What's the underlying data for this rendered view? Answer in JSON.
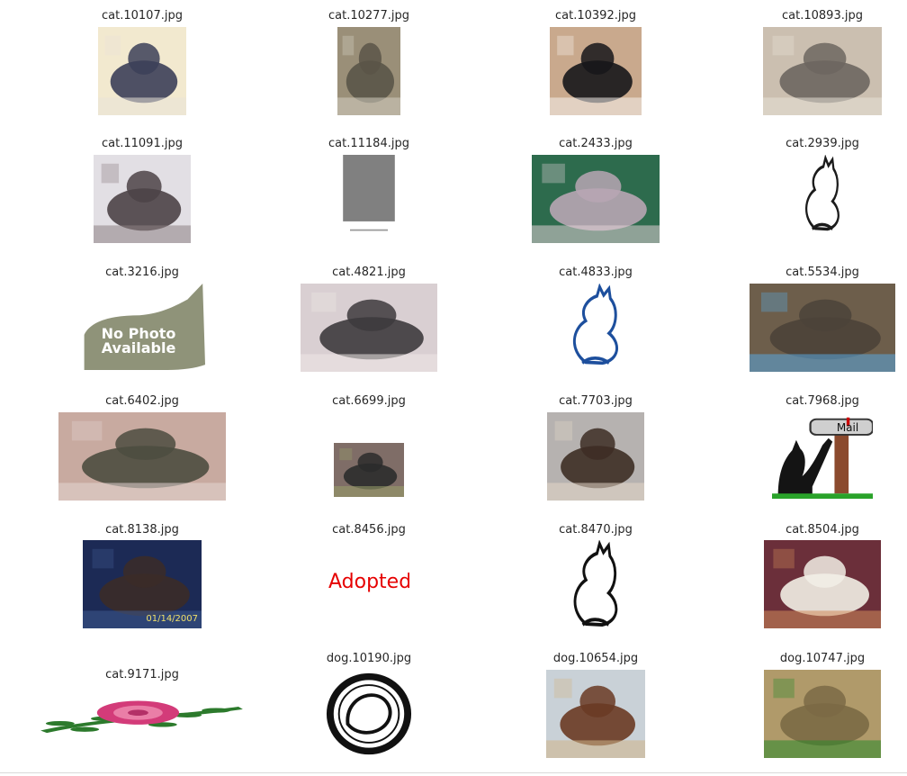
{
  "grid": {
    "items": [
      {
        "filename": "cat.10107.jpg",
        "content": "photo",
        "colors": [
          "#f2e9cf",
          "#3c3f58",
          "#eae3d8"
        ]
      },
      {
        "filename": "cat.10277.jpg",
        "content": "photo",
        "colors": [
          "#9a8f78",
          "#5a5548",
          "#d5d0c3"
        ]
      },
      {
        "filename": "cat.10392.jpg",
        "content": "photo",
        "colors": [
          "#c9a98d",
          "#16161a",
          "#f5f2ee"
        ]
      },
      {
        "filename": "cat.10893.jpg",
        "content": "photo",
        "colors": [
          "#cbbfb0",
          "#6d6660",
          "#e8e2d7"
        ]
      },
      {
        "filename": "cat.11091.jpg",
        "content": "photo",
        "colors": [
          "#e2dfe4",
          "#4c4346",
          "#8c7f84"
        ]
      },
      {
        "filename": "cat.11184.jpg",
        "content": "gray-panel",
        "colors": [
          "#808080",
          "#ffffff",
          "#9a9a9a"
        ]
      },
      {
        "filename": "cat.2433.jpg",
        "content": "photo",
        "colors": [
          "#2d6b4d",
          "#b8a6b4",
          "#e0d0d6"
        ]
      },
      {
        "filename": "cat.2939.jpg",
        "content": "line-art",
        "colors": [
          "#ffffff",
          "#1b1b1b",
          "#ffffff"
        ]
      },
      {
        "filename": "cat.3216.jpg",
        "content": "no-photo",
        "text": "No Photo Available",
        "colors": [
          "#8f9379",
          "#ffffff",
          "#7c7f68"
        ]
      },
      {
        "filename": "cat.4821.jpg",
        "content": "photo",
        "colors": [
          "#d9cfd2",
          "#3d3a3d",
          "#efe7e6"
        ]
      },
      {
        "filename": "cat.4833.jpg",
        "content": "line-art",
        "colors": [
          "#ffffff",
          "#1d4f9d",
          "#ffffff"
        ]
      },
      {
        "filename": "cat.5534.jpg",
        "content": "photo",
        "colors": [
          "#6d5e4b",
          "#4b4339",
          "#5aa8e0"
        ]
      },
      {
        "filename": "cat.6402.jpg",
        "content": "photo",
        "colors": [
          "#c8aaa0",
          "#4c4c3f",
          "#e3d5d1"
        ]
      },
      {
        "filename": "cat.6699.jpg",
        "content": "photo",
        "colors": [
          "#7f6d67",
          "#2c2c2c",
          "#9ba06a"
        ]
      },
      {
        "filename": "cat.7703.jpg",
        "content": "photo",
        "colors": [
          "#b6b2b0",
          "#3d2d25",
          "#e3d7c8"
        ]
      },
      {
        "filename": "cat.7968.jpg",
        "content": "mailbox",
        "text": "Mail",
        "colors": [
          "#ffffff",
          "#141414",
          "#8b4a2e"
        ]
      },
      {
        "filename": "cat.8138.jpg",
        "content": "photo",
        "colors": [
          "#1c2a55",
          "#3b2b28",
          "#3e5a8f"
        ],
        "text": "01/14/2007"
      },
      {
        "filename": "cat.8456.jpg",
        "content": "adopted",
        "text": "Adopted",
        "colors": [
          "#ffffff",
          "#e60000",
          "#ffffff"
        ]
      },
      {
        "filename": "cat.8470.jpg",
        "content": "line-art",
        "colors": [
          "#ffffff",
          "#111111",
          "#ffffff"
        ]
      },
      {
        "filename": "cat.8504.jpg",
        "content": "photo",
        "colors": [
          "#6b2f3a",
          "#f2efe6",
          "#d08b5a"
        ]
      },
      {
        "filename": "cat.9171.jpg",
        "content": "rose",
        "colors": [
          "#ffffff",
          "#d33b79",
          "#2c7a2c"
        ]
      },
      {
        "filename": "dog.10190.jpg",
        "content": "logo",
        "colors": [
          "#ffffff",
          "#111111",
          "#ffffff"
        ]
      },
      {
        "filename": "dog.10654.jpg",
        "content": "photo",
        "colors": [
          "#c9d1d7",
          "#6a3a23",
          "#d0b488"
        ]
      },
      {
        "filename": "dog.10747.jpg",
        "content": "photo",
        "colors": [
          "#b09a6a",
          "#7b6a45",
          "#2a8a2a"
        ]
      }
    ]
  }
}
